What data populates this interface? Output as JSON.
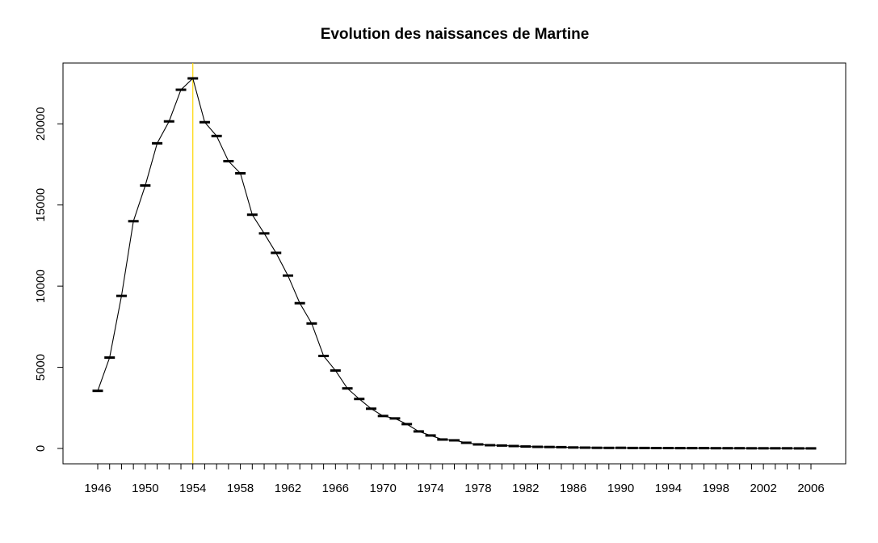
{
  "chart_data": {
    "type": "line",
    "title": "Evolution des naissances de Martine",
    "xlabel": "",
    "ylabel": "",
    "x": [
      1946,
      1947,
      1948,
      1949,
      1950,
      1951,
      1952,
      1953,
      1954,
      1955,
      1956,
      1957,
      1958,
      1959,
      1960,
      1961,
      1962,
      1963,
      1964,
      1965,
      1966,
      1967,
      1968,
      1969,
      1970,
      1971,
      1972,
      1973,
      1974,
      1975,
      1976,
      1977,
      1978,
      1979,
      1980,
      1981,
      1982,
      1983,
      1984,
      1985,
      1986,
      1987,
      1988,
      1989,
      1990,
      1991,
      1992,
      1993,
      1994,
      1995,
      1996,
      1997,
      1998,
      1999,
      2000,
      2001,
      2002,
      2003,
      2004,
      2005,
      2006
    ],
    "values": [
      3550,
      5600,
      9400,
      14000,
      16200,
      18800,
      20150,
      22100,
      22800,
      20100,
      19250,
      17700,
      16950,
      14400,
      13250,
      12050,
      10650,
      8950,
      7700,
      5700,
      4800,
      3700,
      3050,
      2450,
      2000,
      1850,
      1500,
      1050,
      800,
      550,
      500,
      350,
      250,
      200,
      180,
      150,
      120,
      100,
      90,
      80,
      60,
      50,
      40,
      35,
      40,
      30,
      30,
      25,
      25,
      20,
      20,
      20,
      15,
      15,
      15,
      10,
      10,
      10,
      10,
      5,
      5
    ],
    "xlim": [
      1946,
      2006
    ],
    "ylim": [
      0,
      22800
    ],
    "x_tick_labels": [
      "1946",
      "1950",
      "1954",
      "1958",
      "1962",
      "1966",
      "1970",
      "1974",
      "1978",
      "1982",
      "1986",
      "1990",
      "1994",
      "1998",
      "2002",
      "2006"
    ],
    "y_tick_labels": [
      "0",
      "5000",
      "10000",
      "15000",
      "20000"
    ],
    "highlight_x": 1954,
    "colors": {
      "line": "#000000",
      "highlight": "#ffd700",
      "axis": "#000000"
    },
    "grid": false,
    "legend": "none"
  }
}
